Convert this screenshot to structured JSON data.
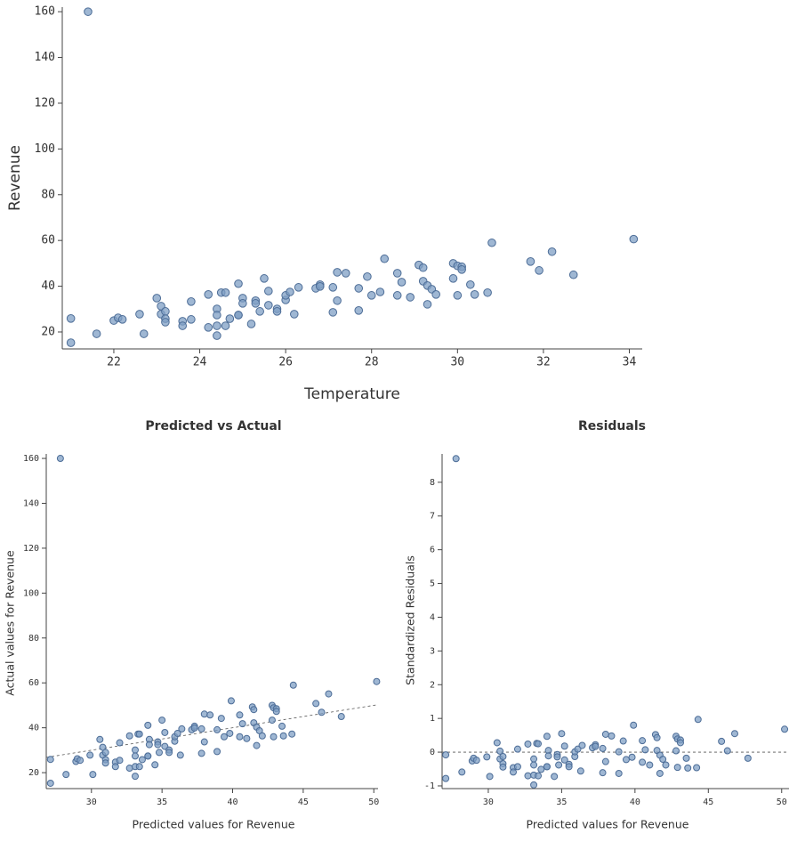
{
  "chart_data": [
    {
      "type": "scatter",
      "xlabel": "Temperature",
      "ylabel": "Revenue",
      "color": "#7f9fc4",
      "edge_color": "#4d6d97",
      "xlim": [
        20.8,
        34.3
      ],
      "ylim": [
        12.6,
        162
      ],
      "xticks": [
        22,
        24,
        26,
        28,
        30,
        32,
        34
      ],
      "yticks": [
        20,
        40,
        60,
        80,
        100,
        120,
        140,
        160
      ],
      "x": [
        21.4,
        21.0,
        21.0,
        21.6,
        22.0,
        22.1,
        22.2,
        22.6,
        22.7,
        23.0,
        23.1,
        23.1,
        23.2,
        23.2,
        23.2,
        23.6,
        23.6,
        23.8,
        23.8,
        24.2,
        24.2,
        24.4,
        24.4,
        24.4,
        24.4,
        24.5,
        24.6,
        24.6,
        24.7,
        24.9,
        24.9,
        24.9,
        25.0,
        25.0,
        25.2,
        25.3,
        25.3,
        25.4,
        25.5,
        25.6,
        25.6,
        25.8,
        25.8,
        26.0,
        26.0,
        26.1,
        26.2,
        26.3,
        26.7,
        26.8,
        26.8,
        27.1,
        27.1,
        27.2,
        27.2,
        27.4,
        27.7,
        27.7,
        27.9,
        28.0,
        28.2,
        28.3,
        28.6,
        28.6,
        28.7,
        28.9,
        29.1,
        29.2,
        29.2,
        29.3,
        29.3,
        29.4,
        29.5,
        29.9,
        29.9,
        30.0,
        30.0,
        30.1,
        30.1,
        30.3,
        30.4,
        30.7,
        30.8,
        31.7,
        31.9,
        32.2,
        32.7,
        34.1
      ],
      "values": [
        160,
        25.9,
        15.3,
        19.2,
        25,
        26.2,
        25.5,
        27.8,
        19.2,
        34.8,
        31.3,
        27.8,
        29,
        25.8,
        24.3,
        24.7,
        22.7,
        33.3,
        25.5,
        22,
        36.4,
        30.1,
        27.4,
        22.7,
        18.4,
        37.2,
        37.2,
        22.7,
        25.8,
        27.4,
        41.1,
        27.4,
        34.8,
        32.5,
        23.5,
        33.7,
        32.5,
        29,
        43.4,
        37.9,
        31.7,
        30.1,
        29,
        34,
        36,
        37.5,
        27.8,
        39.5,
        39.1,
        40.7,
        39.9,
        28.6,
        39.5,
        46.1,
        33.7,
        45.7,
        29.4,
        39.1,
        44.2,
        36,
        37.5,
        52,
        36,
        45.7,
        41.8,
        35.2,
        49.3,
        48.1,
        42.2,
        32.1,
        40.3,
        38.7,
        36.4,
        43.4,
        50,
        48.9,
        36,
        48.5,
        47.3,
        40.7,
        36.4,
        37.2,
        59,
        50.8,
        46.9,
        55.1,
        45,
        60.6
      ]
    },
    {
      "type": "scatter",
      "title": "Predicted vs Actual",
      "xlabel": "Predicted values for Revenue",
      "ylabel": "Actual values for Revenue",
      "color": "#7f9fc4",
      "edge_color": "#4d6d97",
      "reference_line": "identity",
      "xlim": [
        26.8,
        50.3
      ],
      "ylim": [
        12.9,
        162
      ],
      "xticks": [
        30,
        35,
        40,
        45,
        50
      ],
      "yticks": [
        20,
        40,
        60,
        80,
        100,
        120,
        140,
        160
      ],
      "x": [
        27.8,
        27.1,
        27.1,
        28.2,
        28.9,
        29.0,
        29.2,
        29.9,
        30.1,
        30.6,
        30.8,
        30.8,
        31.0,
        31.0,
        31.0,
        31.7,
        31.7,
        32.0,
        32.0,
        32.7,
        32.7,
        33.1,
        33.1,
        33.1,
        33.1,
        33.3,
        33.4,
        33.4,
        33.6,
        34.0,
        34.0,
        34.0,
        34.1,
        34.1,
        34.5,
        34.7,
        34.7,
        34.8,
        35.0,
        35.2,
        35.2,
        35.5,
        35.5,
        35.9,
        35.9,
        36.1,
        36.3,
        36.4,
        37.1,
        37.3,
        37.3,
        37.8,
        37.8,
        38.0,
        38.0,
        38.4,
        38.9,
        38.9,
        39.2,
        39.4,
        39.8,
        39.9,
        40.5,
        40.5,
        40.7,
        41.0,
        41.4,
        41.5,
        41.5,
        41.7,
        41.7,
        41.9,
        42.1,
        42.8,
        42.8,
        42.9,
        42.9,
        43.1,
        43.1,
        43.5,
        43.6,
        44.2,
        44.3,
        45.9,
        46.3,
        46.8,
        47.7,
        50.2
      ],
      "values": [
        160,
        25.9,
        15.3,
        19.2,
        25,
        26.2,
        25.5,
        27.8,
        19.2,
        34.8,
        31.3,
        27.8,
        29,
        25.8,
        24.3,
        24.7,
        22.7,
        33.3,
        25.5,
        22,
        36.4,
        30.1,
        27.4,
        22.7,
        18.4,
        37.2,
        37.2,
        22.7,
        25.8,
        27.4,
        41.1,
        27.4,
        34.8,
        32.5,
        23.5,
        33.7,
        32.5,
        29,
        43.4,
        37.9,
        31.7,
        30.1,
        29,
        34,
        36,
        37.5,
        27.8,
        39.5,
        39.1,
        40.7,
        39.9,
        28.6,
        39.5,
        46.1,
        33.7,
        45.7,
        29.4,
        39.1,
        44.2,
        36,
        37.5,
        52,
        36,
        45.7,
        41.8,
        35.2,
        49.3,
        48.1,
        42.2,
        32.1,
        40.3,
        38.7,
        36.4,
        43.4,
        50,
        48.9,
        36,
        48.5,
        47.3,
        40.7,
        36.4,
        37.2,
        59,
        50.8,
        46.9,
        55.1,
        45,
        60.6
      ]
    },
    {
      "type": "scatter",
      "title": "Residuals",
      "xlabel": "Predicted values for Revenue",
      "ylabel": "Standardized Residuals",
      "color": "#7f9fc4",
      "edge_color": "#4d6d97",
      "reference_line": "zero",
      "xlim": [
        26.85,
        50.5
      ],
      "ylim": [
        -1.08,
        8.84
      ],
      "xticks": [
        30,
        35,
        40,
        45,
        50
      ],
      "yticks": [
        -1,
        0,
        1,
        2,
        3,
        4,
        5,
        6,
        7,
        8
      ],
      "x": [
        27.8,
        27.1,
        27.1,
        28.2,
        28.9,
        29.0,
        29.2,
        29.9,
        30.1,
        30.6,
        30.8,
        30.8,
        31.0,
        31.0,
        31.0,
        31.7,
        31.7,
        32.0,
        32.0,
        32.7,
        32.7,
        33.1,
        33.1,
        33.1,
        33.1,
        33.3,
        33.4,
        33.4,
        33.6,
        34.0,
        34.0,
        34.0,
        34.1,
        34.1,
        34.5,
        34.7,
        34.7,
        34.8,
        35.0,
        35.2,
        35.2,
        35.5,
        35.5,
        35.9,
        35.9,
        36.1,
        36.3,
        36.4,
        37.1,
        37.3,
        37.3,
        37.8,
        37.8,
        38.0,
        38.0,
        38.4,
        38.9,
        38.9,
        39.2,
        39.4,
        39.8,
        39.9,
        40.5,
        40.5,
        40.7,
        41.0,
        41.4,
        41.5,
        41.5,
        41.7,
        41.7,
        41.9,
        42.1,
        42.8,
        42.8,
        42.9,
        42.9,
        43.1,
        43.1,
        43.5,
        43.6,
        44.2,
        44.3,
        45.9,
        46.3,
        46.8,
        47.7,
        50.2
      ],
      "values": [
        8.7,
        -0.08,
        -0.78,
        -0.59,
        -0.26,
        -0.18,
        -0.24,
        -0.14,
        -0.72,
        0.28,
        0.03,
        -0.2,
        -0.13,
        -0.34,
        -0.44,
        -0.46,
        -0.59,
        0.09,
        -0.43,
        -0.7,
        0.24,
        -0.2,
        -0.38,
        -0.68,
        -0.97,
        0.26,
        0.25,
        -0.7,
        -0.51,
        -0.43,
        0.47,
        -0.43,
        0.05,
        -0.11,
        -0.72,
        -0.07,
        -0.14,
        -0.38,
        0.55,
        0.18,
        -0.23,
        -0.36,
        -0.43,
        -0.13,
        0.01,
        0.09,
        -0.56,
        0.2,
        0.13,
        0.22,
        0.17,
        -0.61,
        0.11,
        0.53,
        -0.28,
        0.48,
        -0.63,
        0.01,
        0.33,
        -0.22,
        -0.15,
        0.8,
        -0.3,
        0.34,
        0.07,
        -0.38,
        0.52,
        0.43,
        0.05,
        -0.63,
        -0.09,
        -0.21,
        -0.38,
        0.04,
        0.47,
        0.39,
        -0.45,
        0.36,
        0.28,
        -0.18,
        -0.47,
        -0.46,
        0.97,
        0.32,
        0.04,
        0.55,
        -0.18,
        0.68
      ]
    }
  ]
}
